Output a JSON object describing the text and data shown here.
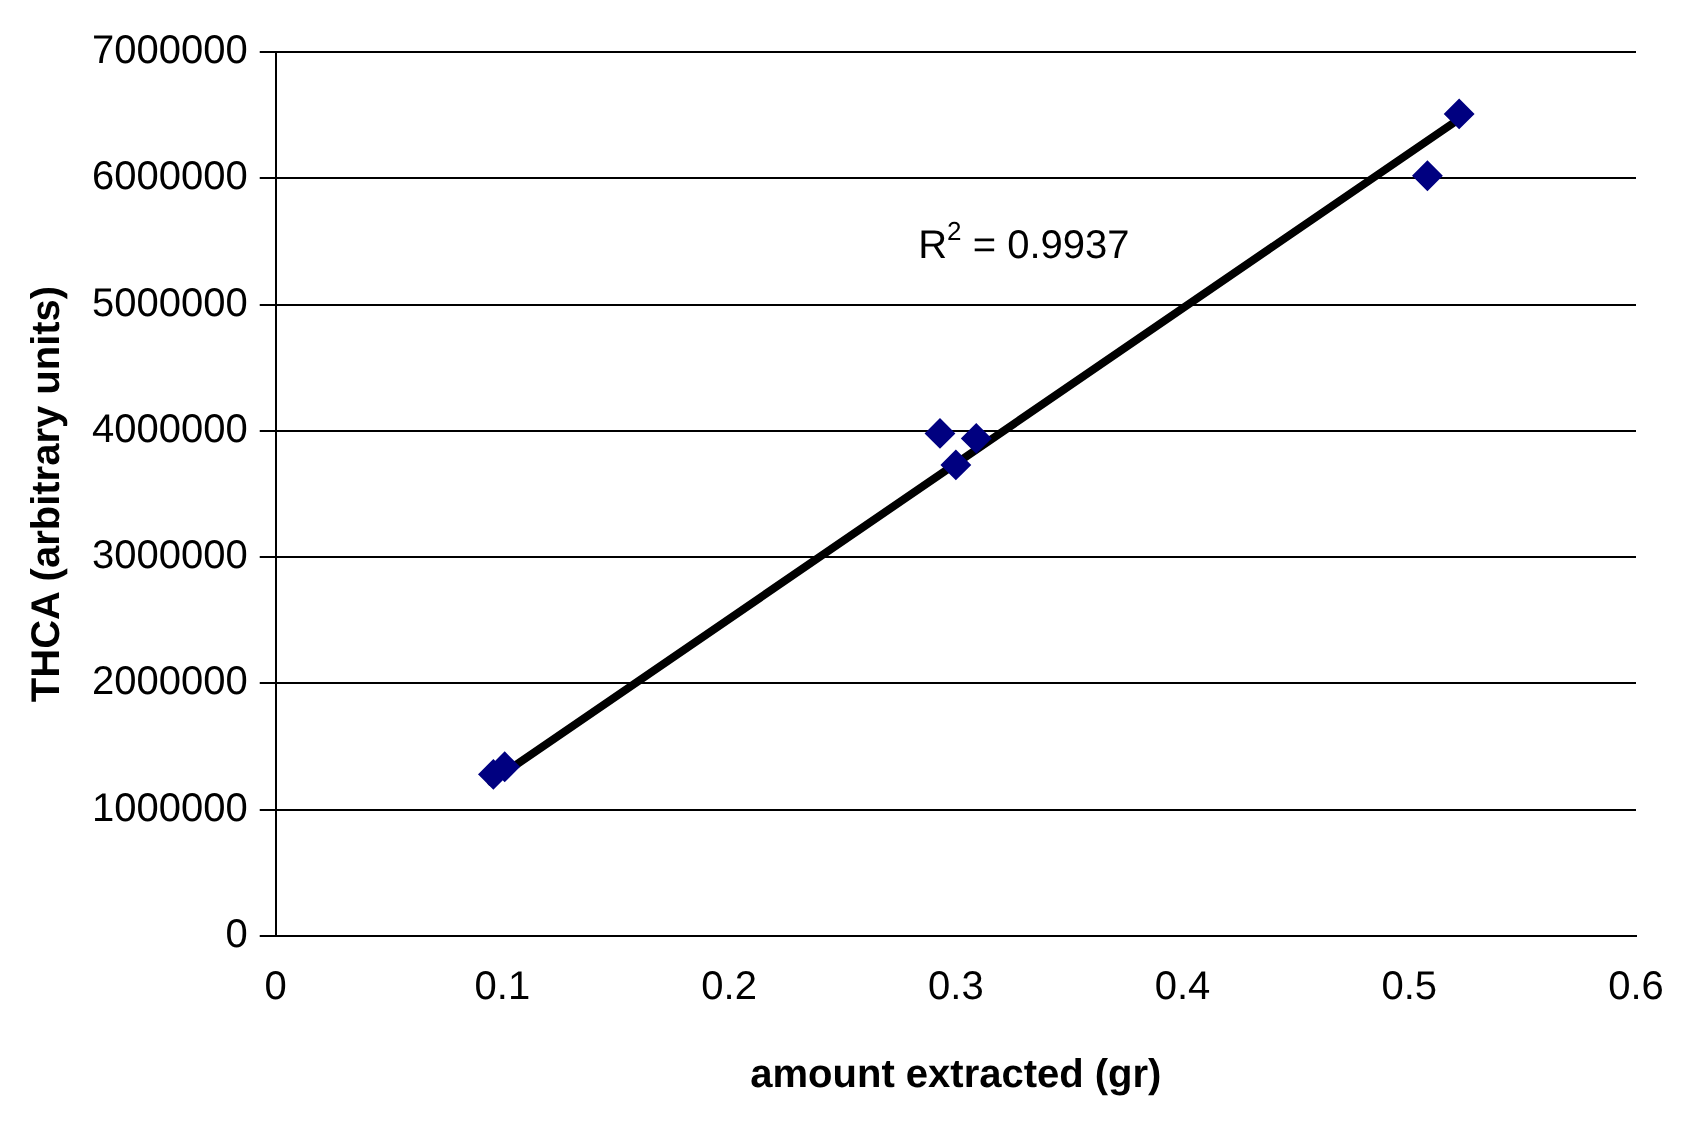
{
  "chart_data": {
    "type": "scatter",
    "xlabel": "amount extracted (gr)",
    "ylabel": "THCA (arbitrary units)",
    "xlim": [
      0,
      0.6
    ],
    "xticks": [
      0,
      0.1,
      0.2,
      0.3,
      0.4,
      0.5,
      0.6
    ],
    "ylim": [
      0,
      7000000
    ],
    "yticks": [
      0,
      1000000,
      2000000,
      3000000,
      4000000,
      5000000,
      6000000,
      7000000
    ],
    "grid": "y",
    "legend": false,
    "series": [
      {
        "marker": "diamond",
        "color": "#000080",
        "x": [
          0.096,
          0.101,
          0.293,
          0.3,
          0.309,
          0.508,
          0.522
        ],
        "values": [
          1280000,
          1340000,
          3980000,
          3730000,
          3940000,
          6020000,
          6510000
        ]
      },
      {
        "type": "line",
        "marker": "none",
        "color": "#000000",
        "x": [
          0.095,
          0.522
        ],
        "values": [
          1220000,
          6470000
        ]
      }
    ],
    "annotations": [
      "R$^{2}$ = 0.9937"
    ]
  }
}
